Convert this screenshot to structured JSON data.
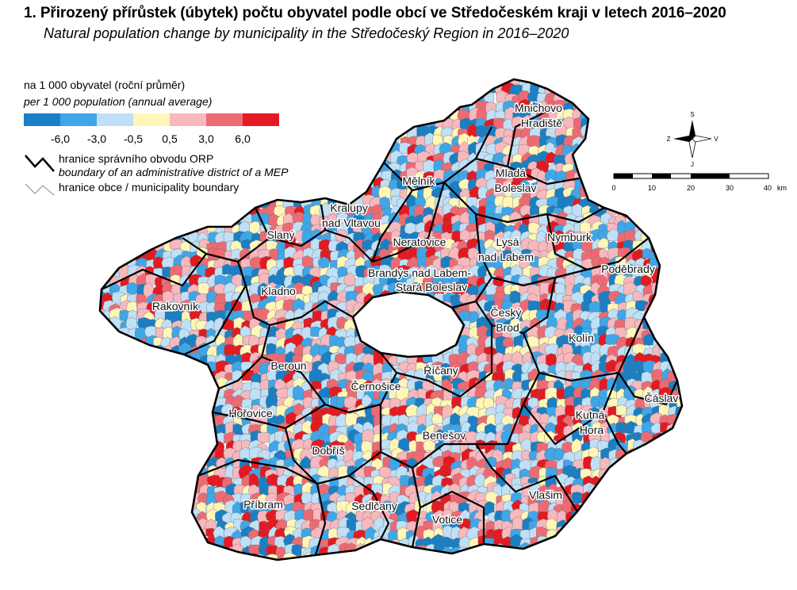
{
  "title": "1. Přirozený přírůstek (úbytek) počtu obyvatel podle obcí ve Středočeském kraji v letech 2016–2020",
  "subtitle": "Natural population change by municipality in the Středočeský Region in 2016–2020",
  "legend": {
    "title": "na 1 000 obyvatel (roční průměr)",
    "subtitle": "per 1 000 population (annual average)",
    "colors": [
      "#1a7fc4",
      "#3fa6e8",
      "#bfe0f6",
      "#fff6b8",
      "#f7b8be",
      "#ee6a73",
      "#e31a22"
    ],
    "ticks": [
      "-6,0",
      "-3,0",
      "-0,5",
      "0,5",
      "3,0",
      "6,0"
    ],
    "orp_boundary_cs": "hranice správního obvodu ORP",
    "orp_boundary_en": "boundary of an administrative district of a MEP",
    "municipality_boundary": "hranice obce / municipality boundary"
  },
  "compass": {
    "north": "S",
    "south": "J",
    "east": "V",
    "west": "Z"
  },
  "scalebar": {
    "labels": [
      "0",
      "10",
      "20",
      "30",
      "40"
    ],
    "unit": "km"
  },
  "districts": [
    {
      "name": "Mnichovo Hradiště",
      "lines": [
        "Mnichovo",
        "Hradiště"
      ]
    },
    {
      "name": "Mělník",
      "lines": [
        "Mělník"
      ]
    },
    {
      "name": "Mladá Boleslav",
      "lines": [
        "Mladá",
        "Boleslav"
      ]
    },
    {
      "name": "Kralupy nad Vltavou",
      "lines": [
        "Kralupy",
        "nad Vltavou"
      ]
    },
    {
      "name": "Slaný",
      "lines": [
        "Slaný"
      ]
    },
    {
      "name": "Neratovice",
      "lines": [
        "Neratovice"
      ]
    },
    {
      "name": "Lysá nad Labem",
      "lines": [
        "Lysá",
        "nad Labem"
      ]
    },
    {
      "name": "Nymburk",
      "lines": [
        "Nymburk"
      ]
    },
    {
      "name": "Poděbrady",
      "lines": [
        "Poděbrady"
      ]
    },
    {
      "name": "Brandýs nad Labem-Stará Boleslav",
      "lines": [
        "Brandýs nad Labem-",
        "Stará Boleslav"
      ]
    },
    {
      "name": "Kladno",
      "lines": [
        "Kladno"
      ]
    },
    {
      "name": "Rakovník",
      "lines": [
        "Rakovník"
      ]
    },
    {
      "name": "Český Brod",
      "lines": [
        "Český",
        "Brod"
      ]
    },
    {
      "name": "Kolín",
      "lines": [
        "Kolín"
      ]
    },
    {
      "name": "Beroun",
      "lines": [
        "Beroun"
      ]
    },
    {
      "name": "Říčany",
      "lines": [
        "Říčany"
      ]
    },
    {
      "name": "Černošice",
      "lines": [
        "Černošice"
      ]
    },
    {
      "name": "Čáslav",
      "lines": [
        "Čáslav"
      ]
    },
    {
      "name": "Hořovice",
      "lines": [
        "Hořovice"
      ]
    },
    {
      "name": "Kutná Hora",
      "lines": [
        "Kutná",
        "Hora"
      ]
    },
    {
      "name": "Benešov",
      "lines": [
        "Benešov"
      ]
    },
    {
      "name": "Dobříš",
      "lines": [
        "Dobříš"
      ]
    },
    {
      "name": "Příbram",
      "lines": [
        "Příbram"
      ]
    },
    {
      "name": "Sedlčany",
      "lines": [
        "Sedlčany"
      ]
    },
    {
      "name": "Vlašim",
      "lines": [
        "Vlašim"
      ]
    },
    {
      "name": "Votice",
      "lines": [
        "Votice"
      ]
    }
  ]
}
